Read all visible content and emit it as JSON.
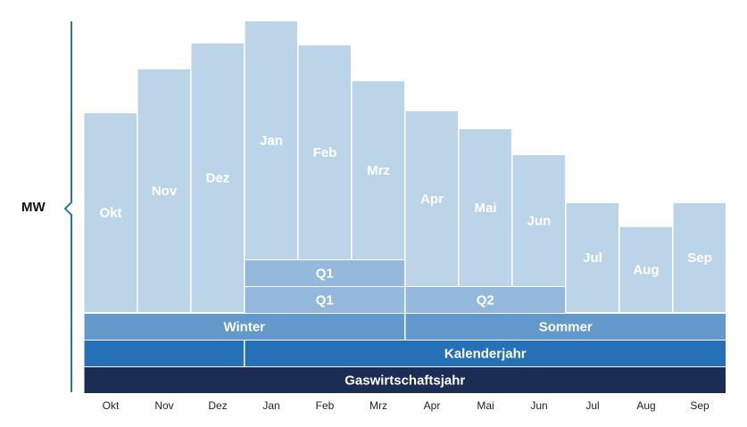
{
  "chart_data": {
    "type": "bar",
    "ylabel": "MW",
    "categories": [
      "Okt",
      "Nov",
      "Dez",
      "Jan",
      "Feb",
      "Mrz",
      "Apr",
      "Mai",
      "Jun",
      "Jul",
      "Aug",
      "Sep"
    ],
    "values": [
      100,
      122,
      135,
      146,
      134,
      116,
      101,
      92,
      79,
      55,
      43,
      55
    ],
    "ylim": [
      0,
      146
    ],
    "bar_color": "#bcd4e8",
    "bands": [
      {
        "name": "monthly-q1",
        "label": "Q1",
        "start": 3,
        "end": 6,
        "color": "#94b9dc",
        "row": 0
      },
      {
        "name": "quarter-q1",
        "label": "Q1",
        "start": 3,
        "end": 6,
        "color": "#94b9dc",
        "row": 1
      },
      {
        "name": "quarter-q2",
        "label": "Q2",
        "start": 6,
        "end": 9,
        "color": "#94b9dc",
        "row": 1
      },
      {
        "name": "season-winter",
        "label": "Winter",
        "start": 0,
        "end": 6,
        "color": "#6499cc",
        "row": 2
      },
      {
        "name": "season-sommer",
        "label": "Sommer",
        "start": 6,
        "end": 12,
        "color": "#6499cc",
        "row": 2
      },
      {
        "name": "calendar-prev",
        "label": "",
        "start": 0,
        "end": 3,
        "color": "#2670b8",
        "row": 3
      },
      {
        "name": "calendar-year",
        "label": "Kalenderjahr",
        "start": 3,
        "end": 12,
        "color": "#2670b8",
        "row": 3
      },
      {
        "name": "gas-year",
        "label": "Gaswirtschaftsjahr",
        "start": 0,
        "end": 12,
        "color": "#1b2d55",
        "row": 4
      }
    ],
    "axis_color": "#2f72b8"
  }
}
